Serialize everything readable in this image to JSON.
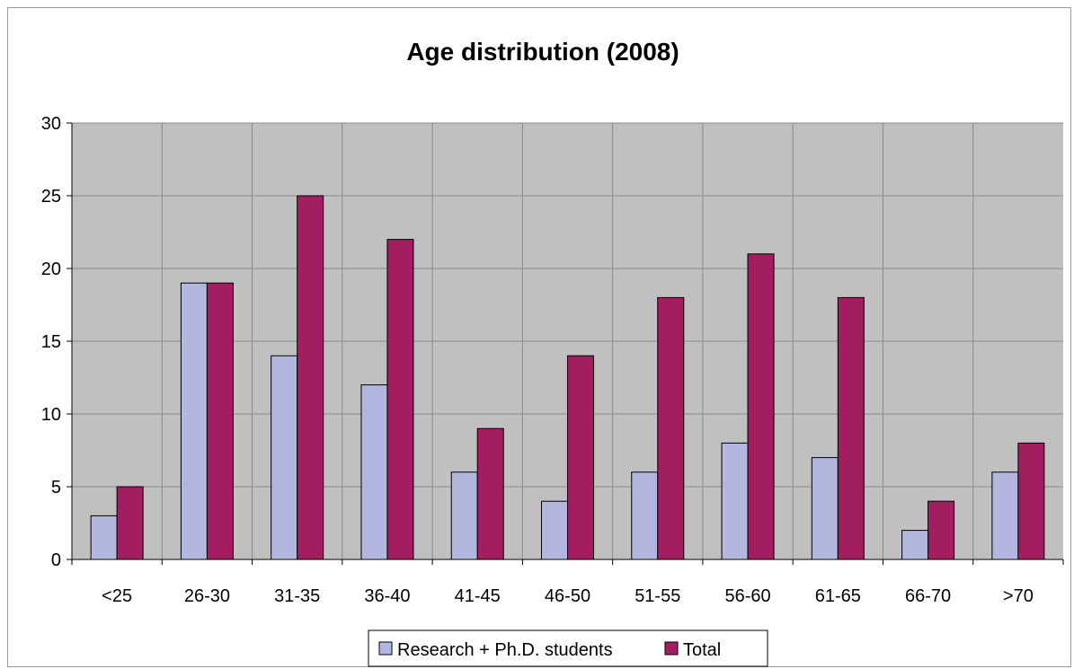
{
  "chart_data": {
    "type": "bar",
    "title": "Age distribution (2008)",
    "xlabel": "",
    "ylabel": "",
    "ylim": [
      0,
      30
    ],
    "yticks": [
      0,
      5,
      10,
      15,
      20,
      25,
      30
    ],
    "grid": true,
    "legend_position": "bottom",
    "categories": [
      "<25",
      "26-30",
      "31-35",
      "36-40",
      "41-45",
      "46-50",
      "51-55",
      "56-60",
      "61-65",
      "66-70",
      ">70"
    ],
    "series": [
      {
        "name": "Research + Ph.D. students",
        "color": "#b3b7e0",
        "values": [
          3,
          19,
          14,
          12,
          6,
          4,
          6,
          8,
          7,
          2,
          6
        ]
      },
      {
        "name": "Total",
        "color": "#a31e60",
        "values": [
          5,
          19,
          25,
          22,
          9,
          14,
          18,
          21,
          18,
          4,
          8
        ]
      }
    ],
    "plot_background": "#c0c0c0"
  }
}
